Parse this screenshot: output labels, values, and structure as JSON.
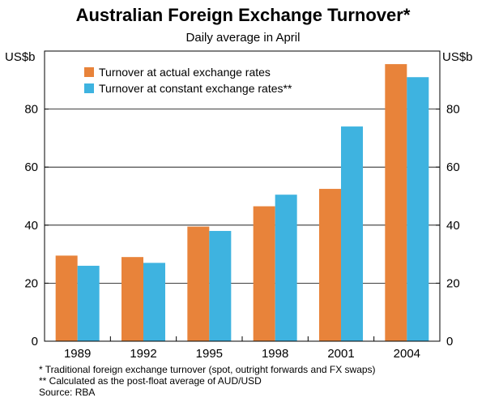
{
  "title": "Australian Foreign Exchange Turnover*",
  "subtitle": "Daily average in April",
  "unit_left": "US$b",
  "unit_right": "US$b",
  "colors": {
    "actual": "#e8833a",
    "constant": "#3eb3e0"
  },
  "chart_data": {
    "type": "bar",
    "categories": [
      "1989",
      "1992",
      "1995",
      "1998",
      "2001",
      "2004"
    ],
    "series": [
      {
        "name": "Turnover at actual exchange rates",
        "values": [
          29.5,
          29,
          39.5,
          46.5,
          52.5,
          95.5
        ]
      },
      {
        "name": "Turnover at constant exchange rates**",
        "values": [
          26,
          27,
          38,
          50.5,
          74,
          91
        ]
      }
    ],
    "ylim": [
      0,
      100
    ],
    "yticks": [
      "0",
      "20",
      "40",
      "60",
      "80"
    ],
    "ytick_values": [
      0,
      20,
      40,
      60,
      80
    ],
    "legend_position": "top-left",
    "grid": true
  },
  "footnotes": {
    "note1": "*  Traditional foreign exchange turnover (spot, outright forwards and FX swaps)",
    "note2": "** Calculated as the post-float average of AUD/USD",
    "source": "Source: RBA"
  }
}
